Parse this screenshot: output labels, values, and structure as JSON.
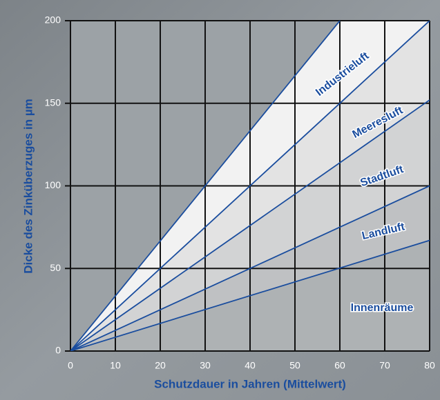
{
  "chart_data": {
    "type": "line",
    "xlabel": "Schutzdauer in Jahren (Mittelwert)",
    "ylabel": "Dicke des Zinküberzuges in µm",
    "xlim": [
      0,
      80
    ],
    "ylim": [
      0,
      200
    ],
    "xticks": [
      0,
      10,
      20,
      30,
      40,
      50,
      60,
      70,
      80
    ],
    "yticks": [
      0,
      50,
      100,
      150,
      200
    ],
    "grid": true,
    "line_color": "#1a4d9e",
    "series": [
      {
        "x": [
          0,
          60
        ],
        "values": [
          0,
          200
        ]
      },
      {
        "x": [
          0,
          80
        ],
        "values": [
          0,
          200
        ]
      },
      {
        "x": [
          0,
          80
        ],
        "values": [
          0,
          152
        ]
      },
      {
        "x": [
          0,
          80
        ],
        "values": [
          0,
          100
        ]
      },
      {
        "x": [
          0,
          80
        ],
        "values": [
          0,
          67
        ]
      }
    ],
    "annotations": [
      "Industrieluft",
      "Meeresluft",
      "Stadtluft",
      "Landluft",
      "Innenräume"
    ]
  }
}
